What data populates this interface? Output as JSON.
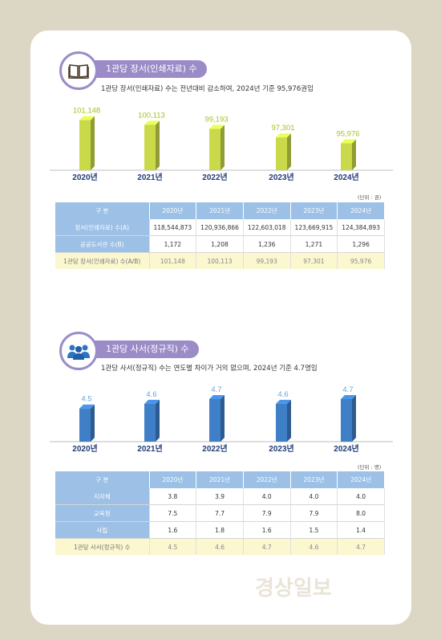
{
  "section1": {
    "title": "1관당 장서(인쇄자료) 수",
    "subtitle": "1관당 장서(인쇄자료) 수는 전년대비 감소하여, 2024년 기준 95,976권임",
    "unit": "(단위 : 권)",
    "table": {
      "header": [
        "구 분",
        "2020년",
        "2021년",
        "2022년",
        "2023년",
        "2024년"
      ],
      "rows": [
        [
          "장서(인쇄자료) 수(A)",
          "118,544,873",
          "120,936,866",
          "122,603,018",
          "123,669,915",
          "124,384,893"
        ],
        [
          "공공도서관 수(B)",
          "1,172",
          "1,208",
          "1,236",
          "1,271",
          "1,296"
        ],
        [
          "1관당 장서(인쇄자료) 수(A/B)",
          "101,148",
          "100,113",
          "99,193",
          "97,301",
          "95,976"
        ]
      ]
    }
  },
  "section2": {
    "title": "1관당 사서(정규직) 수",
    "subtitle": "1관당 사서(정규직) 수는 연도별 차이가 거의 없으며, 2024년 기준 4.7명임",
    "unit": "(단위 : 명)",
    "table": {
      "header": [
        "구 분",
        "2020년",
        "2021년",
        "2022년",
        "2023년",
        "2024년"
      ],
      "rows": [
        [
          "지자체",
          "3.8",
          "3.9",
          "4.0",
          "4.0",
          "4.0"
        ],
        [
          "교육청",
          "7.5",
          "7.7",
          "7.9",
          "7.9",
          "8.0"
        ],
        [
          "사립",
          "1.6",
          "1.8",
          "1.6",
          "1.5",
          "1.4"
        ],
        [
          "1관당 사서(정규직) 수",
          "4.5",
          "4.6",
          "4.7",
          "4.6",
          "4.7"
        ]
      ]
    }
  },
  "watermark": "경상일보",
  "chart_data": [
    {
      "type": "bar",
      "categories": [
        "2020년",
        "2021년",
        "2022년",
        "2023년",
        "2024년"
      ],
      "values": [
        101148,
        100113,
        99193,
        97301,
        95976
      ],
      "data_labels": [
        "101,148",
        "100,113",
        "99,193",
        "97,301",
        "95,976"
      ],
      "bar_color": "#c9d94a",
      "label_color": "#a6c21f",
      "ylim": [
        90000,
        102500
      ]
    },
    {
      "type": "bar",
      "categories": [
        "2020년",
        "2021년",
        "2022년",
        "2023년",
        "2024년"
      ],
      "values": [
        4.5,
        4.6,
        4.7,
        4.6,
        4.7
      ],
      "data_labels": [
        "4.5",
        "4.6",
        "4.7",
        "4.6",
        "4.7"
      ],
      "bar_color": "#3f7fc7",
      "label_color": "#6ba3dd",
      "ylim": [
        3.8,
        4.75
      ]
    }
  ]
}
